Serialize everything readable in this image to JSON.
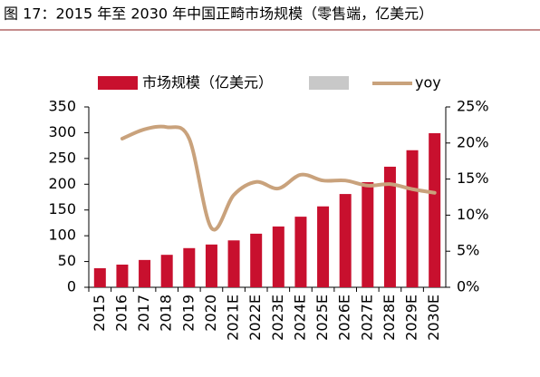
{
  "chart_data": {
    "type": "bar_line",
    "title": "图 17：2015 年至 2030 年中国正畸市场规模（零售端，亿美元）",
    "categories": [
      "2015",
      "2016",
      "2017",
      "2018",
      "2019",
      "2020",
      "2021E",
      "2022E",
      "2023E",
      "2024E",
      "2025E",
      "2026E",
      "2027E",
      "2028E",
      "2029E",
      "2030E"
    ],
    "series": [
      {
        "name": "市场规模（亿美元）",
        "color": "#c8102e",
        "type": "bar",
        "values": [
          37,
          44,
          53,
          63,
          76,
          83,
          91,
          104,
          118,
          137,
          157,
          181,
          204,
          234,
          266,
          299
        ]
      },
      {
        "name": "yoy",
        "color": "#c9a27c",
        "type": "line",
        "axis": "y2",
        "values": [
          null,
          20.6,
          21.9,
          22.2,
          20.6,
          8.2,
          12.8,
          14.6,
          13.7,
          15.6,
          14.8,
          14.8,
          14.1,
          14.3,
          13.6,
          13.1
        ]
      }
    ],
    "ylim": [
      0,
      350
    ],
    "yticks": [
      0,
      50,
      100,
      150,
      200,
      250,
      300,
      350
    ],
    "y2lim": [
      0,
      25
    ],
    "y2ticks": [
      {
        "value": 0,
        "label": "0%"
      },
      {
        "value": 5,
        "label": "5%"
      },
      {
        "value": 10,
        "label": "10%"
      },
      {
        "value": 15,
        "label": "15%"
      },
      {
        "value": 20,
        "label": "20%"
      },
      {
        "value": 25,
        "label": "25%"
      }
    ],
    "legend": "top"
  }
}
